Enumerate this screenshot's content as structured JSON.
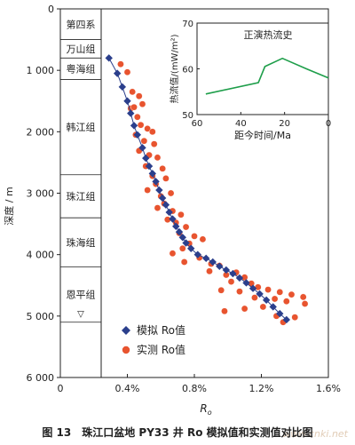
{
  "chart_data": {
    "type": "scatter",
    "main": {
      "xlabel": "Ro",
      "ylabel": "深度 / m",
      "xlim": [
        0,
        1.6
      ],
      "ylim": [
        0,
        6000
      ],
      "y_reversed": true,
      "x_ticks": [
        0,
        0.4,
        0.8,
        1.2,
        1.6
      ],
      "x_tick_labels": [
        "0",
        "0.4%",
        "0.8%",
        "1.2%",
        "1.6%"
      ],
      "y_ticks": [
        0,
        1000,
        2000,
        3000,
        4000,
        5000,
        6000
      ],
      "y_tick_labels": [
        "0",
        "1 000",
        "2 000",
        "3 000",
        "4 000",
        "5 000",
        "6 000"
      ],
      "strata": [
        {
          "name": "第四系",
          "top": 0,
          "bottom": 500
        },
        {
          "name": "万山组",
          "top": 500,
          "bottom": 800
        },
        {
          "name": "粤海组",
          "top": 800,
          "bottom": 1150
        },
        {
          "name": "韩江组",
          "top": 1150,
          "bottom": 2700
        },
        {
          "name": "珠江组",
          "top": 2700,
          "bottom": 3400
        },
        {
          "name": "珠海组",
          "top": 3400,
          "bottom": 4200
        },
        {
          "name": "恩平组",
          "top": 4200,
          "bottom": 5100
        }
      ],
      "strata_marker": {
        "symbol": "▽",
        "depth": 4950
      },
      "legend": {
        "position": "bottom-left",
        "items": [
          "模拟 Ro值",
          "实测 Ro值"
        ]
      },
      "series": [
        {
          "name": "模拟 Ro值",
          "marker": "diamond",
          "color": "#2b3f8c",
          "points": [
            [
              0.29,
              800
            ],
            [
              0.34,
              1050
            ],
            [
              0.37,
              1270
            ],
            [
              0.4,
              1500
            ],
            [
              0.42,
              1700
            ],
            [
              0.44,
              1900
            ],
            [
              0.46,
              2050
            ],
            [
              0.49,
              2260
            ],
            [
              0.51,
              2430
            ],
            [
              0.53,
              2560
            ],
            [
              0.55,
              2680
            ],
            [
              0.57,
              2810
            ],
            [
              0.59,
              2950
            ],
            [
              0.61,
              3080
            ],
            [
              0.63,
              3190
            ],
            [
              0.65,
              3310
            ],
            [
              0.67,
              3420
            ],
            [
              0.69,
              3540
            ],
            [
              0.71,
              3630
            ],
            [
              0.73,
              3720
            ],
            [
              0.75,
              3810
            ],
            [
              0.78,
              3900
            ],
            [
              0.82,
              4000
            ],
            [
              0.87,
              4060
            ],
            [
              0.91,
              4120
            ],
            [
              0.95,
              4190
            ],
            [
              0.99,
              4250
            ],
            [
              1.03,
              4310
            ],
            [
              1.07,
              4380
            ],
            [
              1.11,
              4460
            ],
            [
              1.15,
              4550
            ],
            [
              1.19,
              4640
            ],
            [
              1.23,
              4740
            ],
            [
              1.27,
              4850
            ],
            [
              1.31,
              4960
            ],
            [
              1.35,
              5060
            ]
          ]
        },
        {
          "name": "实测 Ro值",
          "marker": "circle",
          "color": "#e8542f",
          "points": [
            [
              0.36,
              900
            ],
            [
              0.4,
              1030
            ],
            [
              0.43,
              1350
            ],
            [
              0.42,
              1620
            ],
            [
              0.44,
              1600
            ],
            [
              0.47,
              1420
            ],
            [
              0.49,
              1550
            ],
            [
              0.46,
              1760
            ],
            [
              0.48,
              1890
            ],
            [
              0.52,
              1950
            ],
            [
              0.55,
              2000
            ],
            [
              0.45,
              2050
            ],
            [
              0.5,
              2150
            ],
            [
              0.56,
              2200
            ],
            [
              0.47,
              2310
            ],
            [
              0.53,
              2380
            ],
            [
              0.58,
              2420
            ],
            [
              0.51,
              2560
            ],
            [
              0.61,
              2600
            ],
            [
              0.55,
              2720
            ],
            [
              0.63,
              2760
            ],
            [
              0.57,
              2850
            ],
            [
              0.52,
              2950
            ],
            [
              0.6,
              3050
            ],
            [
              0.66,
              3000
            ],
            [
              0.62,
              3170
            ],
            [
              0.58,
              3240
            ],
            [
              0.67,
              3290
            ],
            [
              0.72,
              3350
            ],
            [
              0.64,
              3430
            ],
            [
              0.69,
              3480
            ],
            [
              0.75,
              3550
            ],
            [
              0.71,
              3650
            ],
            [
              0.8,
              3700
            ],
            [
              0.85,
              3750
            ],
            [
              0.77,
              3820
            ],
            [
              0.73,
              3900
            ],
            [
              0.67,
              3980
            ],
            [
              0.74,
              4120
            ],
            [
              0.83,
              4050
            ],
            [
              0.9,
              4150
            ],
            [
              0.95,
              4180
            ],
            [
              0.89,
              4270
            ],
            [
              0.99,
              4330
            ],
            [
              1.05,
              4290
            ],
            [
              1.1,
              4370
            ],
            [
              1.02,
              4440
            ],
            [
              1.14,
              4470
            ],
            [
              0.96,
              4580
            ],
            [
              1.07,
              4600
            ],
            [
              1.18,
              4530
            ],
            [
              1.24,
              4570
            ],
            [
              1.31,
              4610
            ],
            [
              1.38,
              4650
            ],
            [
              1.16,
              4700
            ],
            [
              1.28,
              4720
            ],
            [
              1.35,
              4760
            ],
            [
              1.45,
              4690
            ],
            [
              1.21,
              4850
            ],
            [
              1.1,
              4880
            ],
            [
              0.98,
              4920
            ],
            [
              1.29,
              5000
            ],
            [
              1.4,
              5020
            ],
            [
              1.46,
              4800
            ],
            [
              1.33,
              5100
            ]
          ]
        }
      ]
    },
    "inset": {
      "type": "line",
      "title": "正演热流史",
      "xlabel": "距今时间/Ma",
      "ylabel": "热流值/(mW/m²)",
      "xlim": [
        60,
        0
      ],
      "ylim": [
        50,
        70
      ],
      "x_ticks": [
        60,
        40,
        20,
        0
      ],
      "y_ticks": [
        50,
        60,
        70
      ],
      "color": "#1e9e4a",
      "series": [
        {
          "x": [
            56,
            32,
            29,
            21,
            10,
            0
          ],
          "y": [
            54.5,
            57,
            60.5,
            62.3,
            60,
            58
          ]
        }
      ]
    }
  },
  "caption": {
    "number": "图 13",
    "text": "珠江口盆地 PY33 井 Ro 模拟值和实测值对比图"
  },
  "watermark": "www.cnki.net"
}
